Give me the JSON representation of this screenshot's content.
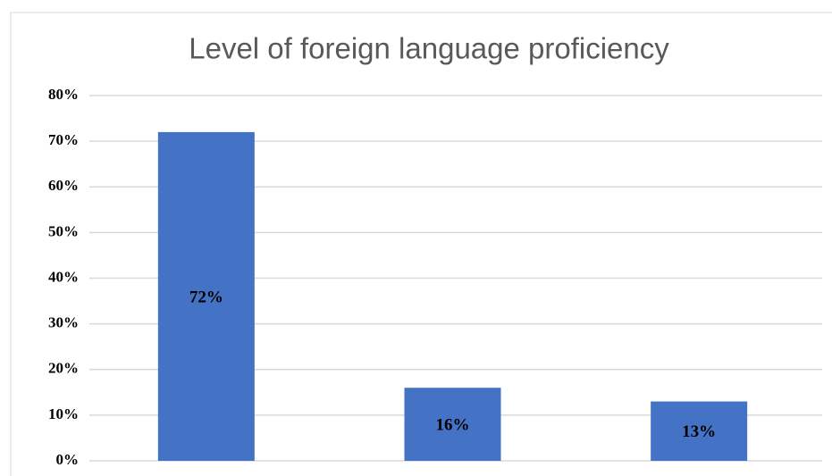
{
  "chart_data": {
    "type": "bar",
    "title": "Level of foreign language proficiency",
    "categories": [
      null,
      null,
      null
    ],
    "values": [
      72,
      16,
      13
    ],
    "value_labels": [
      "72%",
      "16%",
      "13%"
    ],
    "color": "#4472c4",
    "ylim": [
      0,
      80
    ],
    "yticks": [
      {
        "value": 0,
        "label": "0%"
      },
      {
        "value": 10,
        "label": "10%"
      },
      {
        "value": 20,
        "label": "20%"
      },
      {
        "value": 30,
        "label": "30%"
      },
      {
        "value": 40,
        "label": "40%"
      },
      {
        "value": 50,
        "label": "50%"
      },
      {
        "value": 60,
        "label": "60%"
      },
      {
        "value": 70,
        "label": "70%"
      },
      {
        "value": 80,
        "label": "80%"
      }
    ],
    "grid": true
  }
}
